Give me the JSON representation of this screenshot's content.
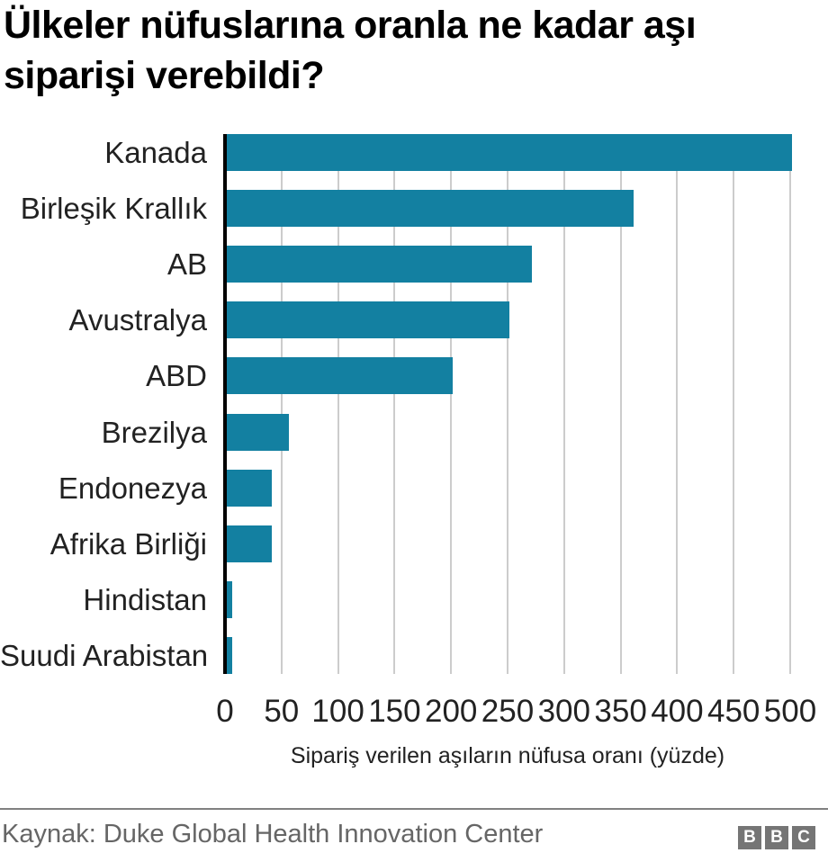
{
  "title": "Ülkeler nüfuslarına oranla ne kadar aşı siparişi verebildi?",
  "chart_data": {
    "type": "bar",
    "orientation": "horizontal",
    "categories": [
      "Kanada",
      "Birleşik Krallık",
      "AB",
      "Avustralya",
      "ABD",
      "Brezilya",
      "Endonezya",
      "Afrika Birliği",
      "Hindistan",
      "Suudi Arabistan"
    ],
    "values": [
      500,
      360,
      270,
      250,
      200,
      55,
      40,
      40,
      5,
      5
    ],
    "xlabel": "Sipariş verilen aşıların nüfusa oranı (yüzde)",
    "ylabel": "",
    "xlim": [
      0,
      500
    ],
    "xticks": [
      0,
      50,
      100,
      150,
      200,
      250,
      300,
      350,
      400,
      450,
      500
    ],
    "grid": true,
    "legend": "none",
    "bar_color": "#1380A1",
    "gridline_color": "#cccccc",
    "axis_color": "#000000"
  },
  "footer": {
    "source": "Kaynak: Duke Global Health Innovation Center",
    "logo_letters": [
      "B",
      "B",
      "C"
    ],
    "logo_color": "#757575"
  }
}
